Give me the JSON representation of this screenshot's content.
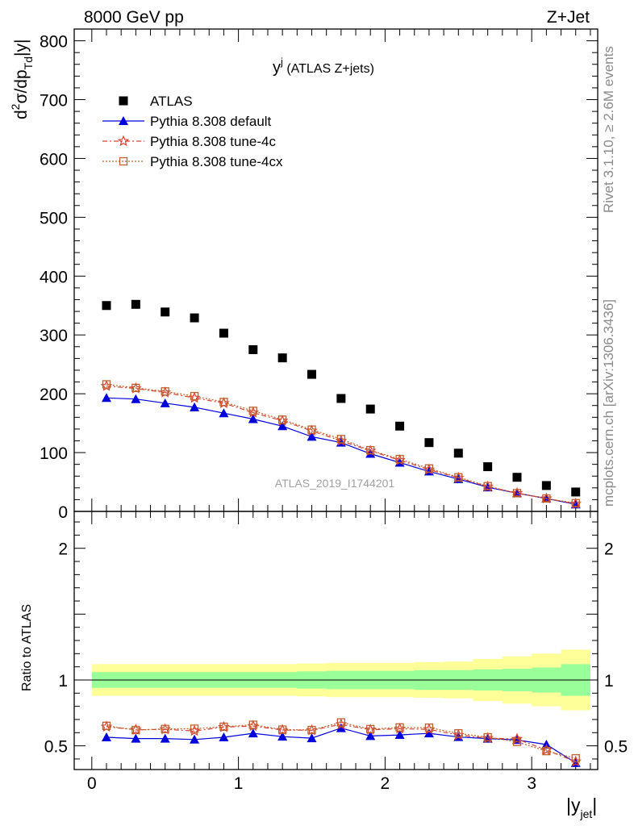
{
  "header": {
    "left": "8000 GeV pp",
    "right": "Z+Jet"
  },
  "side_labels": {
    "rivet": "Rivet 3.1.10, ≥ 2.6M events",
    "mcplots": "mcplots.cern.ch [arXiv:1306.3436]"
  },
  "watermark": "ATLAS_2019_I1744201",
  "chart_data": {
    "type": "scatter",
    "title_main": "y",
    "title_sup": "j",
    "title_rest": " (ATLAS Z+jets)",
    "ylabel": {
      "d": "d",
      "sup2": "2",
      "sigma": "σ/dp",
      "sub": "Td",
      "rest": "|y|"
    },
    "xlabel": {
      "main": "|y",
      "sub": "jet",
      "end": "|"
    },
    "ratio_ylabel": "Ratio to ATLAS",
    "xlim": [
      -0.12,
      3.45
    ],
    "ylim": [
      0,
      820
    ],
    "ratio_ylim": [
      0.32,
      2.28
    ],
    "yticks": [
      "0",
      "100",
      "200",
      "300",
      "400",
      "500",
      "600",
      "700",
      "800"
    ],
    "xticks": [
      "0",
      "1",
      "2",
      "3"
    ],
    "ratio_yticks": [
      "0.5",
      "1",
      "2"
    ],
    "x": [
      0.1,
      0.3,
      0.5,
      0.7,
      0.9,
      1.1,
      1.3,
      1.5,
      1.7,
      1.9,
      2.1,
      2.3,
      2.5,
      2.7,
      2.9,
      3.1,
      3.3
    ],
    "legend_position": "top-left",
    "series": [
      {
        "name": "ATLAS",
        "marker": "square",
        "color": "#000000",
        "values": [
          350,
          352,
          339,
          329,
          303,
          275,
          261,
          233,
          192,
          174,
          145,
          117,
          99,
          76,
          58,
          44,
          33
        ]
      },
      {
        "name": "Pythia 8.308 default",
        "marker": "triangle",
        "color": "#0000dd",
        "values": [
          193,
          191,
          184,
          177,
          167,
          157,
          145,
          127,
          117,
          98,
          83,
          68,
          55,
          41,
          31,
          22,
          12
        ],
        "ratio": [
          0.565,
          0.555,
          0.555,
          0.548,
          0.565,
          0.595,
          0.57,
          0.558,
          0.635,
          0.575,
          0.583,
          0.595,
          0.567,
          0.555,
          0.545,
          0.51,
          0.37
        ]
      },
      {
        "name": "Pythia 8.308 tune-4c",
        "marker": "star",
        "color": "#d94030",
        "values": [
          213,
          209,
          202,
          193,
          184,
          168,
          154,
          137,
          120,
          103,
          87,
          71,
          57,
          42,
          31,
          22,
          13
        ],
        "ratio": [
          0.645,
          0.622,
          0.625,
          0.613,
          0.642,
          0.65,
          0.62,
          0.618,
          0.663,
          0.622,
          0.63,
          0.625,
          0.582,
          0.558,
          0.552,
          0.468,
          0.38
        ]
      },
      {
        "name": "Pythia 8.308 tune-4cx",
        "marker": "open-square",
        "color": "#c06028",
        "values": [
          216,
          210,
          204,
          196,
          186,
          171,
          156,
          139,
          123,
          104,
          89,
          73,
          58,
          43,
          31,
          22,
          14
        ],
        "ratio": [
          0.652,
          0.62,
          0.628,
          0.63,
          0.645,
          0.66,
          0.623,
          0.62,
          0.678,
          0.627,
          0.64,
          0.638,
          0.595,
          0.565,
          0.53,
          0.46,
          0.405
        ]
      }
    ],
    "bands": {
      "x_edges": [
        0.0,
        0.2,
        0.4,
        0.6,
        0.8,
        1.0,
        1.2,
        1.4,
        1.6,
        1.8,
        2.0,
        2.2,
        2.4,
        2.6,
        2.8,
        3.0,
        3.2,
        3.4
      ],
      "green": [
        0.06,
        0.06,
        0.06,
        0.06,
        0.06,
        0.06,
        0.06,
        0.065,
        0.07,
        0.07,
        0.07,
        0.075,
        0.075,
        0.08,
        0.085,
        0.095,
        0.12
      ],
      "yellow": [
        0.12,
        0.12,
        0.12,
        0.12,
        0.12,
        0.12,
        0.12,
        0.125,
        0.13,
        0.13,
        0.13,
        0.135,
        0.14,
        0.16,
        0.18,
        0.2,
        0.23
      ],
      "green_color": "#99ff99",
      "yellow_color": "#ffff99"
    }
  }
}
